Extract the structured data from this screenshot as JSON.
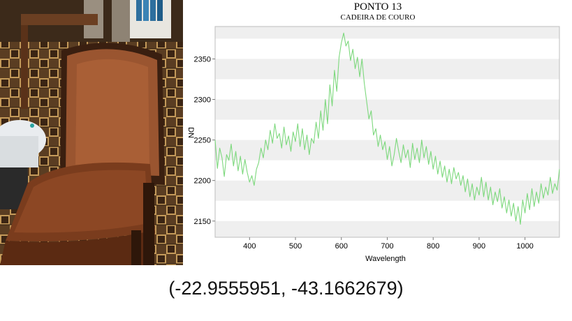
{
  "coordinates": "(-22.9555951, -43.1662679)",
  "photo": {
    "subject": "leather-chair"
  },
  "chart_data": {
    "type": "line",
    "title": "PONTO 13",
    "subtitle": "CADEIRA DE COURO",
    "xlabel": "Wavelength",
    "ylabel": "DN",
    "xlim": [
      325,
      1075
    ],
    "ylim": [
      2130,
      2390
    ],
    "xticks": [
      400,
      500,
      600,
      700,
      800,
      900,
      1000
    ],
    "yticks": [
      2150,
      2200,
      2250,
      2300,
      2350
    ],
    "grid": "alternating horizontal bands",
    "line_color": "#7dd87d",
    "band_color": "#efefef",
    "series": [
      {
        "name": "",
        "x": [
          325,
          330,
          335,
          340,
          345,
          350,
          355,
          360,
          365,
          370,
          375,
          380,
          385,
          390,
          395,
          400,
          405,
          410,
          415,
          420,
          425,
          430,
          435,
          440,
          445,
          450,
          455,
          460,
          465,
          470,
          475,
          480,
          485,
          490,
          495,
          500,
          505,
          510,
          515,
          520,
          525,
          530,
          535,
          540,
          545,
          550,
          555,
          560,
          565,
          570,
          575,
          580,
          585,
          590,
          595,
          600,
          605,
          610,
          615,
          620,
          625,
          630,
          635,
          640,
          645,
          650,
          655,
          660,
          665,
          670,
          675,
          680,
          685,
          690,
          695,
          700,
          705,
          710,
          715,
          720,
          725,
          730,
          735,
          740,
          745,
          750,
          755,
          760,
          765,
          770,
          775,
          780,
          785,
          790,
          795,
          800,
          805,
          810,
          815,
          820,
          825,
          830,
          835,
          840,
          845,
          850,
          855,
          860,
          865,
          870,
          875,
          880,
          885,
          890,
          895,
          900,
          905,
          910,
          915,
          920,
          925,
          930,
          935,
          940,
          945,
          950,
          955,
          960,
          965,
          970,
          975,
          980,
          985,
          990,
          995,
          1000,
          1005,
          1010,
          1015,
          1020,
          1025,
          1030,
          1035,
          1040,
          1045,
          1050,
          1055,
          1060,
          1065,
          1070,
          1075
        ],
        "y": [
          2250,
          2215,
          2240,
          2228,
          2205,
          2232,
          2225,
          2245,
          2218,
          2236,
          2212,
          2230,
          2208,
          2226,
          2210,
          2198,
          2206,
          2194,
          2214,
          2222,
          2240,
          2228,
          2250,
          2238,
          2262,
          2246,
          2270,
          2252,
          2258,
          2240,
          2266,
          2244,
          2255,
          2236,
          2260,
          2248,
          2270,
          2242,
          2264,
          2238,
          2256,
          2232,
          2252,
          2246,
          2272,
          2252,
          2286,
          2262,
          2300,
          2270,
          2318,
          2292,
          2336,
          2310,
          2352,
          2370,
          2382,
          2366,
          2372,
          2348,
          2362,
          2338,
          2352,
          2328,
          2350,
          2320,
          2298,
          2276,
          2286,
          2256,
          2264,
          2242,
          2256,
          2238,
          2248,
          2226,
          2242,
          2218,
          2232,
          2252,
          2236,
          2222,
          2244,
          2228,
          2238,
          2216,
          2246,
          2226,
          2240,
          2222,
          2250,
          2228,
          2242,
          2220,
          2236,
          2214,
          2230,
          2208,
          2224,
          2204,
          2218,
          2198,
          2214,
          2196,
          2216,
          2202,
          2210,
          2194,
          2206,
          2186,
          2202,
          2180,
          2196,
          2176,
          2192,
          2182,
          2204,
          2180,
          2198,
          2176,
          2192,
          2170,
          2186,
          2174,
          2190,
          2166,
          2180,
          2160,
          2176,
          2156,
          2172,
          2150,
          2168,
          2146,
          2176,
          2160,
          2184,
          2164,
          2190,
          2168,
          2186,
          2172,
          2196,
          2178,
          2192,
          2182,
          2204,
          2184,
          2196,
          2188,
          2214
        ]
      }
    ]
  }
}
